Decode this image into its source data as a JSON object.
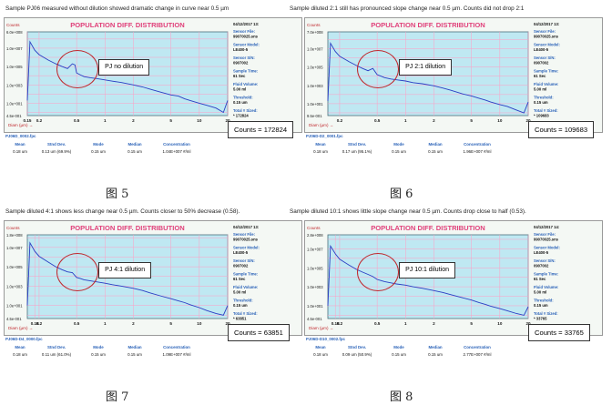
{
  "labels": {
    "counts_axis": "Counts",
    "diam_axis": "Diam (µm) →",
    "sensor_file_label": "Sensor File:",
    "sensor_model_label": "Sensor Model:",
    "sensor_sn_label": "Sensor S/N:",
    "sample_time_label": "Sample Time:",
    "fluid_volume_label": "Fluid Volume:",
    "threshold_label": "Threshold:",
    "total_label": "Total # Sized:",
    "stats_headers": [
      "Mean",
      "Stnd Dev.",
      "Mode",
      "Median",
      "Concentration"
    ]
  },
  "panels": [
    {
      "caption": "Sample PJ06 measured without dilution showed dramatic change in curve near 0.5 µm",
      "fig_label": "图 5",
      "chart_title": "POPULATION DIFF. DISTRIBUTION",
      "inset": "PJ no dilution",
      "counts_box": "Counts = 172824",
      "file": "PJ06D_0002.fpc",
      "date": "04/12/2017 13:",
      "sensor_file": "99070025.sns",
      "sensor_model": "LE400-5",
      "sensor_sn": "0907002",
      "sample_time": "61 Sec",
      "fluid_volume": "5.00 ml",
      "threshold": "0.15 um",
      "total": "* 172824",
      "stats": [
        "0.18 um",
        "0.13 um (69.9%)",
        "0.15 um",
        "0.15 um",
        "1.04E+007 #/ml"
      ]
    },
    {
      "caption": "Sample diluted 2:1 still has pronounced slope change near 0.5 µm. Counts did not drop 2:1",
      "fig_label": "图 6",
      "chart_title": "POPULATION DIFF. DISTRIBUTION",
      "inset": "PJ 2:1 dilution",
      "counts_box": "Counts = 109683",
      "file": "PJ06D-D2_0001.fpc",
      "date": "04/12/2017 13:",
      "sensor_file": "99070025.sns",
      "sensor_model": "LE400-5",
      "sensor_sn": "0907002",
      "sample_time": "61 Sec",
      "fluid_volume": "5.00 ml",
      "threshold": "0.15 um",
      "total": "* 109683",
      "stats": [
        "0.18 um",
        "0.17 um (95.1%)",
        "0.15 um",
        "0.15 um",
        "1.96E+007 #/ml"
      ]
    },
    {
      "caption": "Sample diluted 4:1 shows less change near 0.5 µm. Counts closer to 50% decrease (0.58).",
      "fig_label": "图 7",
      "chart_title": "POPULATION DIFF. DISTRIBUTION",
      "inset": "PJ 4:1 dilution",
      "counts_box": "Counts = 63851",
      "file": "PJ06D-D4_0000.fpc",
      "date": "04/12/2017 13:",
      "sensor_file": "99070025.sns",
      "sensor_model": "LE400-5",
      "sensor_sn": "0907002",
      "sample_time": "61 Sec",
      "fluid_volume": "5.00 ml",
      "threshold": "0.15 um",
      "total": "* 63851",
      "stats": [
        "0.18 um",
        "0.11 um (61.0%)",
        "0.15 um",
        "0.15 um",
        "1.09E+007 #/ml"
      ]
    },
    {
      "caption": "Sample diluted 10:1 shows little slope change near 0.5 µm. Counts drop close to half (0.53).",
      "fig_label": "图 8",
      "chart_title": "POPULATION DIFF. DISTRIBUTION",
      "inset": "PJ 10:1 dilution",
      "counts_box": "Counts = 33765",
      "file": "PJ06D-D10_0002.fpc",
      "date": "04/12/2017 14:",
      "sensor_file": "99070025.sns",
      "sensor_model": "LE400-5",
      "sensor_sn": "0907002",
      "sample_time": "61 Sec",
      "fluid_volume": "5.00 ml",
      "threshold": "0.15 um",
      "total": "* 33765",
      "stats": [
        "0.18 um",
        "0.09 um (50.9%)",
        "0.15 um",
        "0.15 um",
        "2.77E+007 #/ml"
      ]
    }
  ],
  "colors": {
    "plot_bg": "#bfe8f2",
    "grid": "#ff9ec4",
    "curve": "#2a3dc4",
    "title": "#e0407a",
    "circle": "#c0282d"
  },
  "chart_data": [
    {
      "type": "line",
      "title": "POPULATION DIFF. DISTRIBUTION",
      "xlabel": "Diam (µm)",
      "ylabel": "Counts",
      "x_scale": "log",
      "y_scale": "log",
      "xlim": [
        0.15,
        20
      ],
      "ylim": [
        0.45,
        600000000
      ],
      "x_ticks": [
        "0.15",
        "0.2",
        "0.5",
        "1",
        "2",
        "5",
        "10",
        "20"
      ],
      "y_ticks": [
        "4.5e-001",
        "1.0e+001",
        "1.0e+003",
        "1.0e+005",
        "1.0e+007",
        "6.0e+008"
      ],
      "series": [
        {
          "x": [
            0.15,
            0.16,
            0.18,
            0.2,
            0.25,
            0.3,
            0.35,
            0.4,
            0.45,
            0.48,
            0.5,
            0.55,
            0.6,
            0.7,
            0.8,
            1,
            1.2,
            1.5,
            2,
            2.5,
            3,
            4,
            5,
            6,
            7,
            8,
            10,
            12,
            15,
            18,
            20
          ],
          "y": [
            20,
            50000000.0,
            6000000.0,
            2000000.0,
            500000.0,
            200000.0,
            100000.0,
            60000.0,
            200000.0,
            150000.0,
            20000.0,
            12000.0,
            8000,
            6000,
            5000,
            3500,
            2500,
            1800,
            1000,
            600,
            350,
            150,
            80,
            60,
            30,
            20,
            10,
            6,
            3,
            1,
            20
          ]
        }
      ]
    },
    {
      "type": "line",
      "title": "POPULATION DIFF. DISTRIBUTION",
      "xlabel": "Diam (µm)",
      "ylabel": "Counts",
      "x_scale": "log",
      "y_scale": "log",
      "xlim": [
        0.15,
        20
      ],
      "ylim": [
        0.5,
        700000000
      ],
      "x_ticks": [
        "0.2",
        "0.5",
        "1",
        "2",
        "5",
        "10",
        "20"
      ],
      "y_ticks": [
        "9.5e-001",
        "1.0e+001",
        "1.0e+003",
        "1.0e+005",
        "1.0e+007",
        "7.0e+008"
      ],
      "series": [
        {
          "x": [
            0.15,
            0.16,
            0.18,
            0.2,
            0.25,
            0.3,
            0.35,
            0.4,
            0.45,
            0.5,
            0.55,
            0.6,
            0.7,
            0.8,
            1,
            1.2,
            1.5,
            2,
            2.5,
            3,
            4,
            5,
            6,
            7,
            8,
            10,
            12,
            15,
            18,
            20
          ],
          "y": [
            20,
            40000000.0,
            5000000.0,
            1500000.0,
            400000.0,
            150000.0,
            70000.0,
            40000.0,
            70000.0,
            15000.0,
            10000.0,
            7000,
            5000,
            4000,
            3000,
            2000,
            1500,
            900,
            500,
            300,
            120,
            70,
            40,
            25,
            15,
            8,
            5,
            2,
            1,
            15
          ]
        }
      ]
    },
    {
      "type": "line",
      "title": "POPULATION DIFF. DISTRIBUTION",
      "xlabel": "Diam (µm)",
      "ylabel": "Counts",
      "x_scale": "log",
      "y_scale": "log",
      "xlim": [
        0.15,
        20
      ],
      "ylim": [
        0.45,
        200000000
      ],
      "x_ticks": [
        "0.18",
        "0.2",
        "0.5",
        "1",
        "2",
        "5",
        "10",
        "20"
      ],
      "y_ticks": [
        "4.5e-001",
        "1.0e+001",
        "1.0e+003",
        "1.0e+005",
        "1.0e+007",
        "1.8e+008"
      ],
      "series": [
        {
          "x": [
            0.15,
            0.16,
            0.18,
            0.2,
            0.25,
            0.3,
            0.35,
            0.4,
            0.45,
            0.5,
            0.55,
            0.6,
            0.7,
            0.8,
            1,
            1.2,
            1.5,
            2,
            2.5,
            3,
            4,
            5,
            6,
            7,
            8,
            10,
            12,
            15,
            18,
            20
          ],
          "y": [
            10,
            30000000.0,
            4000000.0,
            1200000.0,
            300000.0,
            100000.0,
            50000.0,
            30000.0,
            25000.0,
            8000,
            6000,
            4500,
            3500,
            2800,
            2000,
            1400,
            1000,
            600,
            350,
            200,
            90,
            50,
            30,
            20,
            12,
            6,
            3,
            1.5,
            1,
            10
          ]
        }
      ]
    },
    {
      "type": "line",
      "title": "POPULATION DIFF. DISTRIBUTION",
      "xlabel": "Diam (µm)",
      "ylabel": "Counts",
      "x_scale": "log",
      "y_scale": "log",
      "xlim": [
        0.15,
        20
      ],
      "ylim": [
        0.45,
        300000000
      ],
      "x_ticks": [
        "0.18",
        "0.2",
        "0.5",
        "1",
        "2",
        "5",
        "10",
        "20"
      ],
      "y_ticks": [
        "4.5e-001",
        "1.0e+001",
        "1.0e+003",
        "1.0e+005",
        "1.0e+007",
        "2.8e+008"
      ],
      "series": [
        {
          "x": [
            0.15,
            0.16,
            0.18,
            0.2,
            0.25,
            0.3,
            0.35,
            0.4,
            0.45,
            0.5,
            0.55,
            0.6,
            0.7,
            0.8,
            1,
            1.2,
            1.5,
            2,
            2.5,
            3,
            4,
            5,
            6,
            7,
            8,
            10,
            12,
            15,
            18,
            20
          ],
          "y": [
            10,
            20000000.0,
            3000000.0,
            800000.0,
            200000.0,
            70000.0,
            35000.0,
            20000.0,
            12000.0,
            6000,
            4500,
            3500,
            2600,
            2000,
            1500,
            1000,
            700,
            400,
            250,
            150,
            70,
            40,
            22,
            14,
            9,
            5,
            3,
            1.5,
            1,
            8
          ]
        }
      ]
    }
  ]
}
